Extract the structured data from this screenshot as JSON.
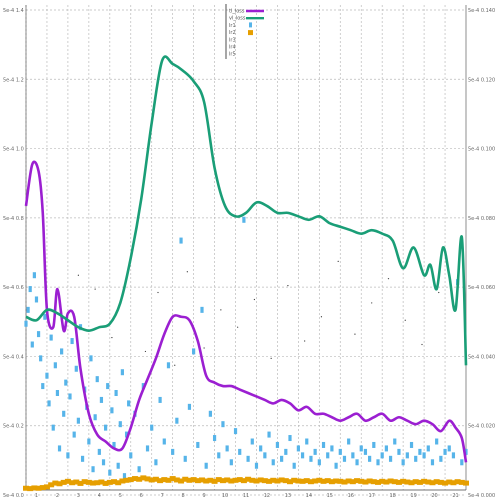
{
  "chart_data": {
    "type": "line",
    "grid": true,
    "legend_position": "top-center",
    "y_left_ticks": [
      "5e-4 1.4",
      "5e-4 1.2",
      "5e-4 1.0",
      "5e-4 0.8",
      "5e-4 0.6",
      "5e-4 0.4",
      "5e-4 0.2",
      "5e-4 0.0"
    ],
    "y_right_ticks": [
      "5e-4 0.140",
      "5e-4 0.120",
      "5e-4 0.100",
      "5e-4 0.080",
      "5e-4 0.060",
      "5e-4 0.040",
      "5e-4 0.020",
      "5e-4 0.000"
    ],
    "x_ticks": [
      "1",
      "2",
      "3",
      "4",
      "5",
      "6",
      "7",
      "8",
      "9",
      "10",
      "11",
      "12",
      "13",
      "14",
      "15",
      "16",
      "17",
      "18",
      "19",
      "20",
      "21"
    ],
    "legend": [
      {
        "label": "tl_loss",
        "color": "#9b1fd1",
        "marker": "line"
      },
      {
        "label": "vl_loss",
        "color": "#1a9e77",
        "marker": "line"
      },
      {
        "label": "lr1",
        "color": "#56b4e9",
        "marker": "square"
      },
      {
        "label": "lr2",
        "color": "#e69f00",
        "marker": "square"
      },
      {
        "label": "lr3",
        "color": "#999999",
        "marker": "none"
      },
      {
        "label": "lr4",
        "color": "#999999",
        "marker": "none"
      },
      {
        "label": "lr5",
        "color": "#999999",
        "marker": "none"
      }
    ],
    "series": [
      {
        "name": "tl_loss",
        "color": "#9b1fd1",
        "x": [
          0,
          0.3,
          0.6,
          0.8,
          1.0,
          1.3,
          1.5,
          1.8,
          2.0,
          2.3,
          2.6,
          3.0,
          3.4,
          3.8,
          4.2,
          4.6,
          5.0,
          5.4,
          5.8,
          6.2,
          6.6,
          7.0,
          7.4,
          7.8,
          8.2,
          8.6,
          9.0,
          9.4,
          9.8,
          10.2,
          10.6,
          11.0,
          11.4,
          11.8,
          12.2,
          12.6,
          13.0,
          13.4,
          13.8,
          14.2,
          14.6,
          15.0,
          15.4,
          15.8,
          16.2,
          16.6,
          17.0,
          17.4,
          17.8,
          18.2,
          18.6,
          19.0,
          19.4,
          19.8,
          20.2,
          20.5,
          20.8,
          21.0
        ],
        "values": [
          0.82,
          0.94,
          0.92,
          0.8,
          0.52,
          0.47,
          0.58,
          0.46,
          0.51,
          0.5,
          0.35,
          0.22,
          0.16,
          0.14,
          0.12,
          0.12,
          0.18,
          0.26,
          0.32,
          0.38,
          0.45,
          0.5,
          0.5,
          0.49,
          0.43,
          0.33,
          0.31,
          0.3,
          0.3,
          0.29,
          0.28,
          0.27,
          0.26,
          0.25,
          0.26,
          0.25,
          0.23,
          0.24,
          0.22,
          0.22,
          0.21,
          0.2,
          0.21,
          0.22,
          0.2,
          0.21,
          0.22,
          0.2,
          0.21,
          0.2,
          0.19,
          0.2,
          0.19,
          0.17,
          0.2,
          0.18,
          0.15,
          0.08
        ]
      },
      {
        "name": "vl_loss",
        "color": "#1a9e77",
        "x": [
          0,
          0.5,
          1.0,
          1.5,
          2.0,
          2.5,
          3.0,
          3.5,
          4.0,
          4.5,
          5.0,
          5.5,
          6.0,
          6.5,
          7.0,
          7.5,
          8.0,
          8.5,
          9.0,
          9.5,
          10.0,
          10.5,
          11.0,
          11.5,
          12.0,
          12.5,
          13.0,
          13.5,
          14.0,
          14.5,
          15.0,
          15.5,
          16.0,
          16.5,
          17.0,
          17.5,
          18.0,
          18.5,
          19.0,
          19.3,
          19.6,
          19.9,
          20.2,
          20.5,
          20.8,
          21.0
        ],
        "values": [
          0.5,
          0.49,
          0.52,
          0.51,
          0.49,
          0.47,
          0.46,
          0.47,
          0.48,
          0.54,
          0.67,
          0.84,
          1.06,
          1.24,
          1.23,
          1.21,
          1.18,
          1.12,
          0.93,
          0.82,
          0.79,
          0.8,
          0.83,
          0.82,
          0.8,
          0.8,
          0.79,
          0.78,
          0.79,
          0.77,
          0.76,
          0.75,
          0.74,
          0.75,
          0.74,
          0.72,
          0.64,
          0.7,
          0.62,
          0.65,
          0.58,
          0.7,
          0.62,
          0.52,
          0.73,
          0.36
        ]
      }
    ],
    "scatter_series": [
      {
        "name": "lr1",
        "color": "#56b4e9",
        "x": [
          0.0,
          0.1,
          0.2,
          0.3,
          0.4,
          0.5,
          0.6,
          0.7,
          0.8,
          0.9,
          1.0,
          1.1,
          1.2,
          1.3,
          1.4,
          1.5,
          1.6,
          1.7,
          1.8,
          1.9,
          2.0,
          2.1,
          2.2,
          2.3,
          2.4,
          2.5,
          2.6,
          2.7,
          2.8,
          2.9,
          3.0,
          3.1,
          3.2,
          3.3,
          3.4,
          3.5,
          3.6,
          3.7,
          3.8,
          3.9,
          4.0,
          4.1,
          4.2,
          4.3,
          4.4,
          4.5,
          4.6,
          4.7,
          4.8,
          4.9,
          5.0,
          5.2,
          5.4,
          5.6,
          5.8,
          6.0,
          6.2,
          6.4,
          6.6,
          6.8,
          7.0,
          7.2,
          7.4,
          7.6,
          7.8,
          8.0,
          8.2,
          8.4,
          8.6,
          8.8,
          9.0,
          9.2,
          9.4,
          9.6,
          9.8,
          10.0,
          10.2,
          10.4,
          10.6,
          10.8,
          11.0,
          11.2,
          11.4,
          11.6,
          11.8,
          12.0,
          12.2,
          12.4,
          12.6,
          12.8,
          13.0,
          13.2,
          13.4,
          13.6,
          13.8,
          14.0,
          14.2,
          14.4,
          14.6,
          14.8,
          15.0,
          15.2,
          15.4,
          15.6,
          15.8,
          16.0,
          16.2,
          16.4,
          16.6,
          16.8,
          17.0,
          17.2,
          17.4,
          17.6,
          17.8,
          18.0,
          18.2,
          18.4,
          18.6,
          18.8,
          19.0,
          19.2,
          19.4,
          19.6,
          19.8,
          20.0,
          20.2,
          20.4,
          20.6,
          20.8,
          21.0
        ],
        "values": [
          0.48,
          0.52,
          0.58,
          0.42,
          0.62,
          0.55,
          0.45,
          0.38,
          0.3,
          0.5,
          0.33,
          0.25,
          0.44,
          0.18,
          0.36,
          0.28,
          0.12,
          0.4,
          0.22,
          0.31,
          0.1,
          0.27,
          0.43,
          0.16,
          0.35,
          0.2,
          0.47,
          0.09,
          0.29,
          0.24,
          0.14,
          0.38,
          0.06,
          0.21,
          0.32,
          0.11,
          0.26,
          0.08,
          0.18,
          0.3,
          0.05,
          0.23,
          0.13,
          0.28,
          0.07,
          0.19,
          0.34,
          0.04,
          0.16,
          0.25,
          0.1,
          0.22,
          0.06,
          0.3,
          0.12,
          0.18,
          0.08,
          0.26,
          0.14,
          0.36,
          0.11,
          0.2,
          0.72,
          0.09,
          0.24,
          0.4,
          0.13,
          0.52,
          0.07,
          0.22,
          0.15,
          0.1,
          0.19,
          0.12,
          0.08,
          0.17,
          0.11,
          0.78,
          0.09,
          0.14,
          0.07,
          0.12,
          0.1,
          0.16,
          0.08,
          0.13,
          0.09,
          0.11,
          0.15,
          0.07,
          0.12,
          0.1,
          0.14,
          0.09,
          0.11,
          0.08,
          0.13,
          0.1,
          0.12,
          0.07,
          0.11,
          0.09,
          0.14,
          0.1,
          0.08,
          0.12,
          0.11,
          0.09,
          0.13,
          0.08,
          0.1,
          0.12,
          0.09,
          0.14,
          0.11,
          0.08,
          0.1,
          0.13,
          0.09,
          0.11,
          0.1,
          0.12,
          0.08,
          0.14,
          0.09,
          0.11,
          0.12,
          0.1,
          0.6,
          0.08,
          0.11
        ]
      },
      {
        "name": "lr2",
        "color": "#e69f00",
        "x": [
          0.0,
          0.2,
          0.4,
          0.6,
          0.8,
          1.0,
          1.2,
          1.4,
          1.6,
          1.8,
          2.0,
          2.2,
          2.4,
          2.6,
          2.8,
          3.0,
          3.2,
          3.4,
          3.6,
          3.8,
          4.0,
          4.2,
          4.4,
          4.6,
          4.8,
          5.0,
          5.2,
          5.4,
          5.6,
          5.8,
          6.0,
          6.2,
          6.4,
          6.6,
          6.8,
          7.0,
          7.2,
          7.4,
          7.6,
          7.8,
          8.0,
          8.2,
          8.4,
          8.6,
          8.8,
          9.0,
          9.2,
          9.4,
          9.6,
          9.8,
          10.0,
          10.2,
          10.4,
          10.6,
          10.8,
          11.0,
          11.2,
          11.4,
          11.6,
          11.8,
          12.0,
          12.2,
          12.4,
          12.6,
          12.8,
          13.0,
          13.2,
          13.4,
          13.6,
          13.8,
          14.0,
          14.2,
          14.4,
          14.6,
          14.8,
          15.0,
          15.2,
          15.4,
          15.6,
          15.8,
          16.0,
          16.2,
          16.4,
          16.6,
          16.8,
          17.0,
          17.2,
          17.4,
          17.6,
          17.8,
          18.0,
          18.2,
          18.4,
          18.6,
          18.8,
          19.0,
          19.2,
          19.4,
          19.6,
          19.8,
          20.0,
          20.2,
          20.4,
          20.6,
          20.8,
          21.0
        ],
        "values": [
          0.005,
          0.004,
          0.006,
          0.005,
          0.007,
          0.009,
          0.015,
          0.02,
          0.018,
          0.022,
          0.025,
          0.021,
          0.023,
          0.019,
          0.024,
          0.022,
          0.02,
          0.021,
          0.023,
          0.019,
          0.022,
          0.024,
          0.021,
          0.026,
          0.028,
          0.03,
          0.033,
          0.031,
          0.035,
          0.032,
          0.029,
          0.031,
          0.027,
          0.03,
          0.028,
          0.033,
          0.029,
          0.026,
          0.031,
          0.028,
          0.03,
          0.027,
          0.029,
          0.026,
          0.028,
          0.025,
          0.03,
          0.027,
          0.029,
          0.026,
          0.028,
          0.03,
          0.027,
          0.031,
          0.028,
          0.026,
          0.029,
          0.027,
          0.025,
          0.028,
          0.026,
          0.029,
          0.027,
          0.024,
          0.028,
          0.026,
          0.025,
          0.027,
          0.024,
          0.026,
          0.028,
          0.025,
          0.027,
          0.024,
          0.026,
          0.025,
          0.023,
          0.026,
          0.024,
          0.027,
          0.025,
          0.023,
          0.026,
          0.024,
          0.022,
          0.025,
          0.023,
          0.026,
          0.024,
          0.022,
          0.025,
          0.023,
          0.021,
          0.024,
          0.022,
          0.025,
          0.023,
          0.021,
          0.024,
          0.022,
          0.02,
          0.023,
          0.021,
          0.024,
          0.022,
          0.02
        ]
      }
    ],
    "sparse_dots": {
      "color": "#333333",
      "x": [
        2.5,
        3.3,
        4.1,
        5.7,
        6.3,
        7.1,
        7.7,
        8.5,
        9.3,
        10.1,
        10.9,
        11.7,
        12.5,
        13.3,
        14.1,
        14.9,
        15.7,
        16.5,
        17.3,
        18.1,
        18.9,
        19.7
      ],
      "values": [
        0.62,
        0.58,
        0.44,
        0.4,
        0.57,
        0.36,
        0.63,
        0.41,
        0.52,
        0.47,
        0.55,
        0.38,
        0.59,
        0.43,
        0.5,
        0.66,
        0.45,
        0.54,
        0.61,
        0.49,
        0.42,
        0.57
      ]
    }
  }
}
